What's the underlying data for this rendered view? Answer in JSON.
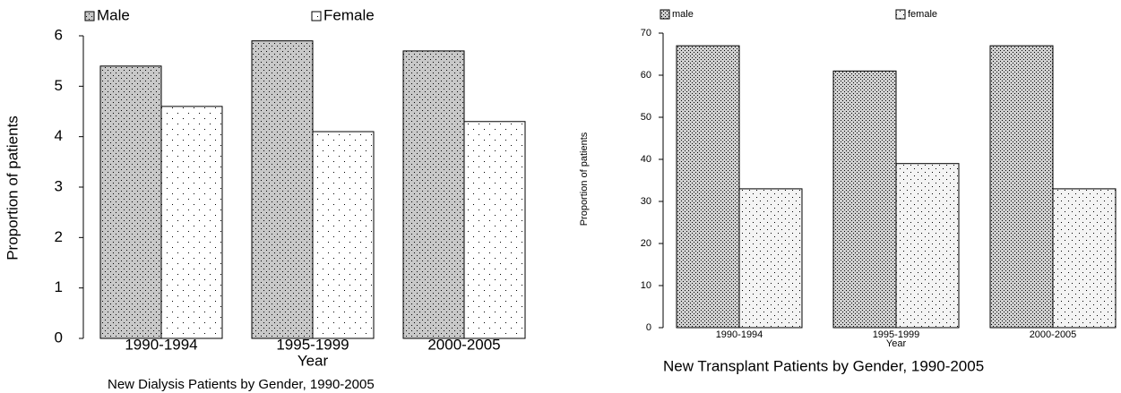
{
  "chart_data": [
    {
      "type": "bar",
      "title": "New Dialysis Patients by Gender, 1990-2005",
      "x_label": "Year",
      "y_label": "Proportion of patients",
      "categories": [
        "1990-1994",
        "1995-1999",
        "2000-2005"
      ],
      "series": [
        {
          "name": "Male",
          "color": "#c8c8c8",
          "values": [
            5.4,
            5.9,
            5.7
          ]
        },
        {
          "name": "Female",
          "color": "#ffffff",
          "values": [
            4.6,
            4.1,
            4.3
          ]
        }
      ],
      "ylim": [
        0,
        6
      ],
      "yticks": [
        0,
        1,
        2,
        3,
        4,
        5,
        6
      ]
    },
    {
      "type": "bar",
      "title": "New Transplant Patients by Gender, 1990-2005",
      "x_label": "Year",
      "y_label": "Proportion of patients",
      "categories": [
        "1990-1994",
        "1995-1999",
        "2000-2005"
      ],
      "series": [
        {
          "name": "male",
          "color": "#d0d0d0",
          "values": [
            67,
            61,
            67
          ]
        },
        {
          "name": "female",
          "color": "#f4f4f4",
          "values": [
            33,
            39,
            33
          ]
        }
      ],
      "ylim": [
        0,
        70
      ],
      "yticks": [
        0,
        10,
        20,
        30,
        40,
        50,
        60,
        70
      ]
    }
  ]
}
